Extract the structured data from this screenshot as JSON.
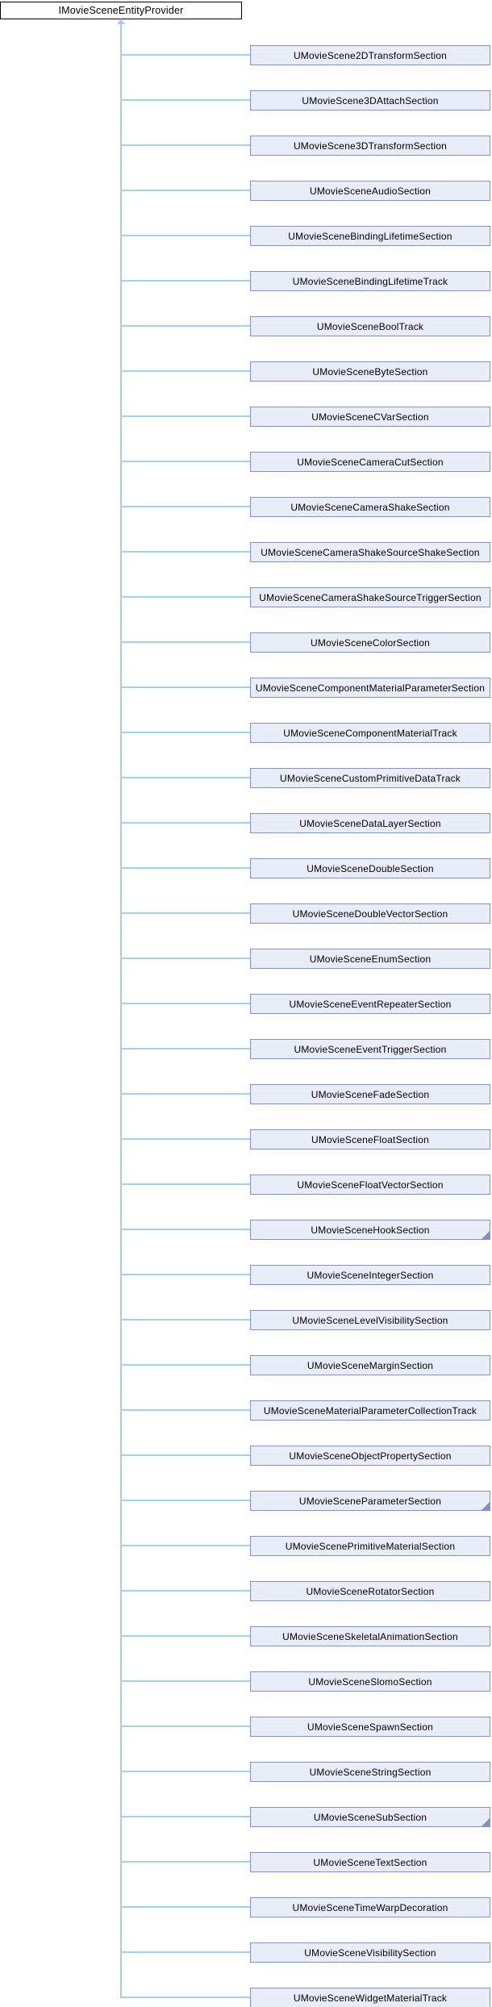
{
  "diagram": {
    "type": "class-inheritance-hierarchy",
    "root": {
      "label": "IMovieSceneEntityProvider"
    },
    "children": [
      {
        "label": "UMovieScene2DTransformSection",
        "has_hidden_children": false
      },
      {
        "label": "UMovieScene3DAttachSection",
        "has_hidden_children": false
      },
      {
        "label": "UMovieScene3DTransformSection",
        "has_hidden_children": false
      },
      {
        "label": "UMovieSceneAudioSection",
        "has_hidden_children": false
      },
      {
        "label": "UMovieSceneBindingLifetimeSection",
        "has_hidden_children": false
      },
      {
        "label": "UMovieSceneBindingLifetimeTrack",
        "has_hidden_children": false
      },
      {
        "label": "UMovieSceneBoolTrack",
        "has_hidden_children": false
      },
      {
        "label": "UMovieSceneByteSection",
        "has_hidden_children": false
      },
      {
        "label": "UMovieSceneCVarSection",
        "has_hidden_children": false
      },
      {
        "label": "UMovieSceneCameraCutSection",
        "has_hidden_children": false
      },
      {
        "label": "UMovieSceneCameraShakeSection",
        "has_hidden_children": false
      },
      {
        "label": "UMovieSceneCameraShakeSourceShakeSection",
        "has_hidden_children": false
      },
      {
        "label": "UMovieSceneCameraShakeSourceTriggerSection",
        "has_hidden_children": false
      },
      {
        "label": "UMovieSceneColorSection",
        "has_hidden_children": false
      },
      {
        "label": "UMovieSceneComponentMaterialParameterSection",
        "has_hidden_children": false
      },
      {
        "label": "UMovieSceneComponentMaterialTrack",
        "has_hidden_children": false
      },
      {
        "label": "UMovieSceneCustomPrimitiveDataTrack",
        "has_hidden_children": false
      },
      {
        "label": "UMovieSceneDataLayerSection",
        "has_hidden_children": false
      },
      {
        "label": "UMovieSceneDoubleSection",
        "has_hidden_children": false
      },
      {
        "label": "UMovieSceneDoubleVectorSection",
        "has_hidden_children": false
      },
      {
        "label": "UMovieSceneEnumSection",
        "has_hidden_children": false
      },
      {
        "label": "UMovieSceneEventRepeaterSection",
        "has_hidden_children": false
      },
      {
        "label": "UMovieSceneEventTriggerSection",
        "has_hidden_children": false
      },
      {
        "label": "UMovieSceneFadeSection",
        "has_hidden_children": false
      },
      {
        "label": "UMovieSceneFloatSection",
        "has_hidden_children": false
      },
      {
        "label": "UMovieSceneFloatVectorSection",
        "has_hidden_children": false
      },
      {
        "label": "UMovieSceneHookSection",
        "has_hidden_children": true
      },
      {
        "label": "UMovieSceneIntegerSection",
        "has_hidden_children": false
      },
      {
        "label": "UMovieSceneLevelVisibilitySection",
        "has_hidden_children": false
      },
      {
        "label": "UMovieSceneMarginSection",
        "has_hidden_children": false
      },
      {
        "label": "UMovieSceneMaterialParameterCollectionTrack",
        "has_hidden_children": false
      },
      {
        "label": "UMovieSceneObjectPropertySection",
        "has_hidden_children": false
      },
      {
        "label": "UMovieSceneParameterSection",
        "has_hidden_children": true
      },
      {
        "label": "UMovieScenePrimitiveMaterialSection",
        "has_hidden_children": false
      },
      {
        "label": "UMovieSceneRotatorSection",
        "has_hidden_children": false
      },
      {
        "label": "UMovieSceneSkeletalAnimationSection",
        "has_hidden_children": false
      },
      {
        "label": "UMovieSceneSlomoSection",
        "has_hidden_children": false
      },
      {
        "label": "UMovieSceneSpawnSection",
        "has_hidden_children": false
      },
      {
        "label": "UMovieSceneStringSection",
        "has_hidden_children": false
      },
      {
        "label": "UMovieSceneSubSection",
        "has_hidden_children": true
      },
      {
        "label": "UMovieSceneTextSection",
        "has_hidden_children": false
      },
      {
        "label": "UMovieSceneTimeWarpDecoration",
        "has_hidden_children": false
      },
      {
        "label": "UMovieSceneVisibilitySection",
        "has_hidden_children": false
      },
      {
        "label": "UMovieSceneWidgetMaterialTrack",
        "has_hidden_children": false
      }
    ],
    "colors": {
      "node_fill": "#e8ecf7",
      "node_border": "#8191c1",
      "edge": "#a8cfea",
      "root_fill": "#ffffff",
      "root_border": "#000000",
      "text": "#000000"
    }
  }
}
